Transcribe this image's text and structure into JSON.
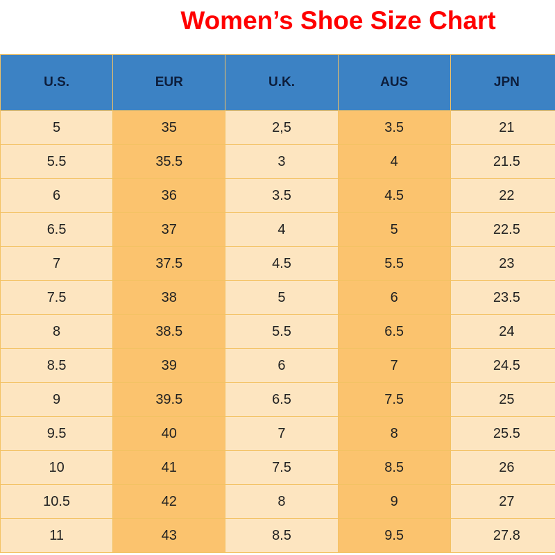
{
  "title": "Women’s Shoe Size Chart",
  "colors": {
    "title": "#ff0000",
    "header_bg": "#3c82c4",
    "light_col": "#fde5c0",
    "dark_col": "#fbc36e",
    "border": "#f3c264"
  },
  "chart_data": {
    "type": "table",
    "title": "Women’s Shoe Size Chart",
    "columns": [
      "U.S.",
      "EUR",
      "U.K.",
      "AUS",
      "JPN"
    ],
    "rows": [
      [
        "5",
        "35",
        "2,5",
        "3.5",
        "21"
      ],
      [
        "5.5",
        "35.5",
        "3",
        "4",
        "21.5"
      ],
      [
        "6",
        "36",
        "3.5",
        "4.5",
        "22"
      ],
      [
        "6.5",
        "37",
        "4",
        "5",
        "22.5"
      ],
      [
        "7",
        "37.5",
        "4.5",
        "5.5",
        "23"
      ],
      [
        "7.5",
        "38",
        "5",
        "6",
        "23.5"
      ],
      [
        "8",
        "38.5",
        "5.5",
        "6.5",
        "24"
      ],
      [
        "8.5",
        "39",
        "6",
        "7",
        "24.5"
      ],
      [
        "9",
        "39.5",
        "6.5",
        "7.5",
        "25"
      ],
      [
        "9.5",
        "40",
        "7",
        "8",
        "25.5"
      ],
      [
        "10",
        "41",
        "7.5",
        "8.5",
        "26"
      ],
      [
        "10.5",
        "42",
        "8",
        "9",
        "27"
      ],
      [
        "11",
        "43",
        "8.5",
        "9.5",
        "27.8"
      ]
    ]
  }
}
